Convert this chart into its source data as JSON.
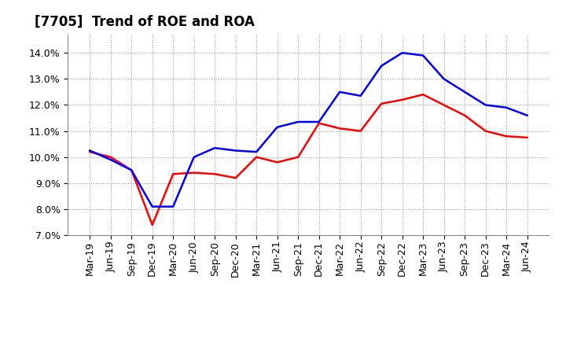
{
  "title": "[7705]  Trend of ROE and ROA",
  "x_labels": [
    "Mar-19",
    "Jun-19",
    "Sep-19",
    "Dec-19",
    "Mar-20",
    "Jun-20",
    "Sep-20",
    "Dec-20",
    "Mar-21",
    "Jun-21",
    "Sep-21",
    "Dec-21",
    "Mar-22",
    "Jun-22",
    "Sep-22",
    "Dec-22",
    "Mar-23",
    "Jun-23",
    "Sep-23",
    "Dec-23",
    "Mar-24",
    "Jun-24"
  ],
  "roe": [
    10.2,
    10.0,
    9.5,
    7.4,
    9.35,
    9.4,
    9.35,
    9.2,
    10.0,
    9.8,
    10.0,
    11.3,
    11.1,
    11.0,
    12.05,
    12.2,
    12.4,
    12.0,
    11.6,
    11.0,
    10.8,
    10.75
  ],
  "roa": [
    10.25,
    9.9,
    9.5,
    8.1,
    8.1,
    10.0,
    10.35,
    10.25,
    10.2,
    11.15,
    11.35,
    11.35,
    12.5,
    12.35,
    13.5,
    14.0,
    13.9,
    13.0,
    12.5,
    12.0,
    11.9,
    11.6
  ],
  "roe_color": "#ff0000",
  "roa_color": "#0000ff",
  "ylim_min": 7.0,
  "ylim_max": 14.7,
  "yticks": [
    7.0,
    8.0,
    9.0,
    10.0,
    11.0,
    12.0,
    13.0,
    14.0
  ],
  "background_color": "#ffffff",
  "grid_color": "#999999",
  "title_fontsize": 12,
  "legend_fontsize": 10,
  "tick_fontsize": 9,
  "linewidth": 1.8
}
